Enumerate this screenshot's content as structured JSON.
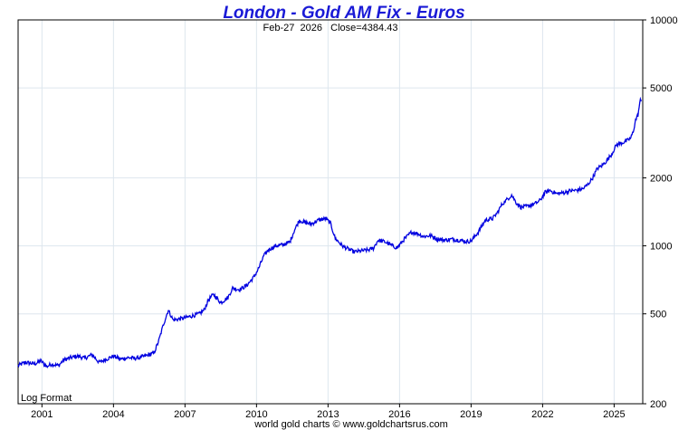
{
  "chart_data": {
    "type": "line",
    "title": "London - Gold AM Fix - Euros",
    "subtitle": "Feb-27  2026   Close=4384.43",
    "scale_note": "Log Format",
    "footer": "world gold charts © www.goldchartsrus.com",
    "y_scale": "log",
    "ylim": [
      200,
      10000
    ],
    "y_ticks": [
      200,
      500,
      1000,
      2000,
      5000,
      10000
    ],
    "y_tick_labels": [
      "200",
      "500",
      "1000",
      "2000",
      "5000",
      "10000"
    ],
    "xlim": [
      2000.0,
      2026.2
    ],
    "x_ticks": [
      2001,
      2004,
      2007,
      2010,
      2013,
      2016,
      2019,
      2022,
      2025
    ],
    "x_tick_labels": [
      "2001",
      "2004",
      "2007",
      "2010",
      "2013",
      "2016",
      "2019",
      "2022",
      "2025"
    ],
    "line_color": "#0000e0",
    "series": [
      {
        "name": "Gold AM Fix (EUR/oz)",
        "points": [
          [
            2000.0,
            295
          ],
          [
            2000.3,
            305
          ],
          [
            2000.7,
            300
          ],
          [
            2000.95,
            310
          ],
          [
            2001.2,
            292
          ],
          [
            2001.4,
            300
          ],
          [
            2001.7,
            295
          ],
          [
            2001.9,
            312
          ],
          [
            2002.2,
            320
          ],
          [
            2002.5,
            325
          ],
          [
            2002.8,
            318
          ],
          [
            2003.1,
            330
          ],
          [
            2003.4,
            305
          ],
          [
            2003.7,
            315
          ],
          [
            2004.0,
            325
          ],
          [
            2004.3,
            315
          ],
          [
            2004.6,
            320
          ],
          [
            2004.9,
            318
          ],
          [
            2005.2,
            322
          ],
          [
            2005.5,
            330
          ],
          [
            2005.7,
            335
          ],
          [
            2005.9,
            380
          ],
          [
            2006.1,
            450
          ],
          [
            2006.3,
            520
          ],
          [
            2006.5,
            470
          ],
          [
            2006.8,
            475
          ],
          [
            2007.0,
            480
          ],
          [
            2007.3,
            490
          ],
          [
            2007.6,
            500
          ],
          [
            2007.8,
            520
          ],
          [
            2008.0,
            580
          ],
          [
            2008.2,
            610
          ],
          [
            2008.5,
            560
          ],
          [
            2008.8,
            590
          ],
          [
            2009.0,
            650
          ],
          [
            2009.3,
            640
          ],
          [
            2009.6,
            670
          ],
          [
            2009.9,
            730
          ],
          [
            2010.1,
            800
          ],
          [
            2010.3,
            900
          ],
          [
            2010.5,
            960
          ],
          [
            2010.8,
            1000
          ],
          [
            2011.1,
            1010
          ],
          [
            2011.4,
            1040
          ],
          [
            2011.6,
            1180
          ],
          [
            2011.8,
            1300
          ],
          [
            2012.0,
            1270
          ],
          [
            2012.3,
            1250
          ],
          [
            2012.6,
            1300
          ],
          [
            2012.9,
            1320
          ],
          [
            2013.1,
            1260
          ],
          [
            2013.3,
            1080
          ],
          [
            2013.6,
            1000
          ],
          [
            2013.9,
            960
          ],
          [
            2014.1,
            940
          ],
          [
            2014.4,
            950
          ],
          [
            2014.7,
            960
          ],
          [
            2014.9,
            975
          ],
          [
            2015.1,
            1060
          ],
          [
            2015.4,
            1040
          ],
          [
            2015.7,
            1000
          ],
          [
            2015.9,
            980
          ],
          [
            2016.2,
            1070
          ],
          [
            2016.5,
            1150
          ],
          [
            2016.8,
            1130
          ],
          [
            2017.0,
            1100
          ],
          [
            2017.3,
            1110
          ],
          [
            2017.6,
            1070
          ],
          [
            2017.9,
            1060
          ],
          [
            2018.2,
            1070
          ],
          [
            2018.5,
            1060
          ],
          [
            2018.8,
            1045
          ],
          [
            2019.0,
            1050
          ],
          [
            2019.3,
            1150
          ],
          [
            2019.6,
            1300
          ],
          [
            2019.9,
            1320
          ],
          [
            2020.1,
            1400
          ],
          [
            2020.3,
            1530
          ],
          [
            2020.5,
            1600
          ],
          [
            2020.7,
            1680
          ],
          [
            2020.9,
            1550
          ],
          [
            2021.1,
            1480
          ],
          [
            2021.4,
            1500
          ],
          [
            2021.7,
            1540
          ],
          [
            2021.9,
            1590
          ],
          [
            2022.1,
            1720
          ],
          [
            2022.3,
            1760
          ],
          [
            2022.6,
            1700
          ],
          [
            2022.9,
            1720
          ],
          [
            2023.1,
            1750
          ],
          [
            2023.4,
            1760
          ],
          [
            2023.7,
            1790
          ],
          [
            2023.9,
            1870
          ],
          [
            2024.1,
            2000
          ],
          [
            2024.3,
            2200
          ],
          [
            2024.5,
            2270
          ],
          [
            2024.7,
            2390
          ],
          [
            2024.9,
            2550
          ],
          [
            2025.1,
            2800
          ],
          [
            2025.3,
            2850
          ],
          [
            2025.5,
            2900
          ],
          [
            2025.7,
            3000
          ],
          [
            2025.8,
            3200
          ],
          [
            2025.9,
            3600
          ],
          [
            2026.0,
            3800
          ],
          [
            2026.05,
            4100
          ],
          [
            2026.1,
            4400
          ],
          [
            2026.15,
            4380
          ]
        ]
      }
    ]
  }
}
